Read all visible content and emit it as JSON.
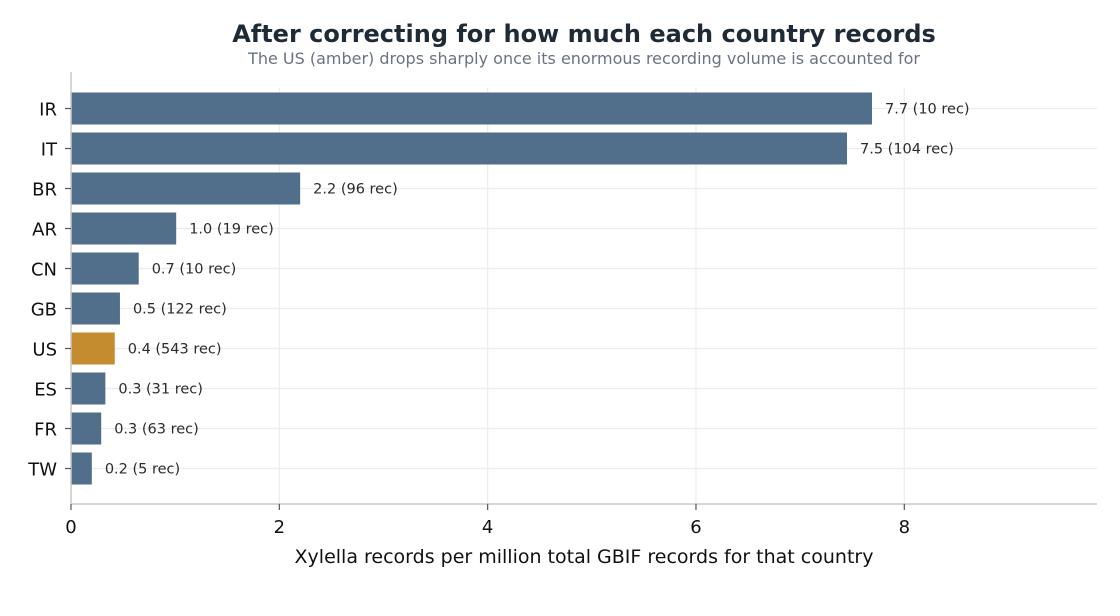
{
  "chart_data": {
    "type": "bar",
    "orientation": "horizontal",
    "title": "After correcting for how much each country records",
    "subtitle": "The US (amber) drops sharply once its enormous recording volume is accounted for",
    "xlabel": "Xylella records per million total GBIF records for that country",
    "ylabel": "",
    "xlim": [
      0,
      9.85
    ],
    "xticks": [
      0,
      2,
      4,
      6,
      8
    ],
    "grid": true,
    "categories": [
      "IR",
      "IT",
      "BR",
      "AR",
      "CN",
      "GB",
      "US",
      "ES",
      "FR",
      "TW"
    ],
    "values": [
      7.69,
      7.45,
      2.2,
      1.01,
      0.65,
      0.47,
      0.42,
      0.33,
      0.29,
      0.2
    ],
    "labels": [
      "7.7  (10 rec)",
      "7.5  (104 rec)",
      "2.2  (96 rec)",
      "1.0  (19 rec)",
      "0.7  (10 rec)",
      "0.5  (122 rec)",
      "0.4  (543 rec)",
      "0.3  (31 rec)",
      "0.3  (63 rec)",
      "0.2  (5 rec)"
    ],
    "highlight_category": "US",
    "colors": {
      "default": "#516f8a",
      "highlight": "#c48c2e",
      "grid": "#ececec",
      "axis": "#c8c8c8"
    }
  }
}
